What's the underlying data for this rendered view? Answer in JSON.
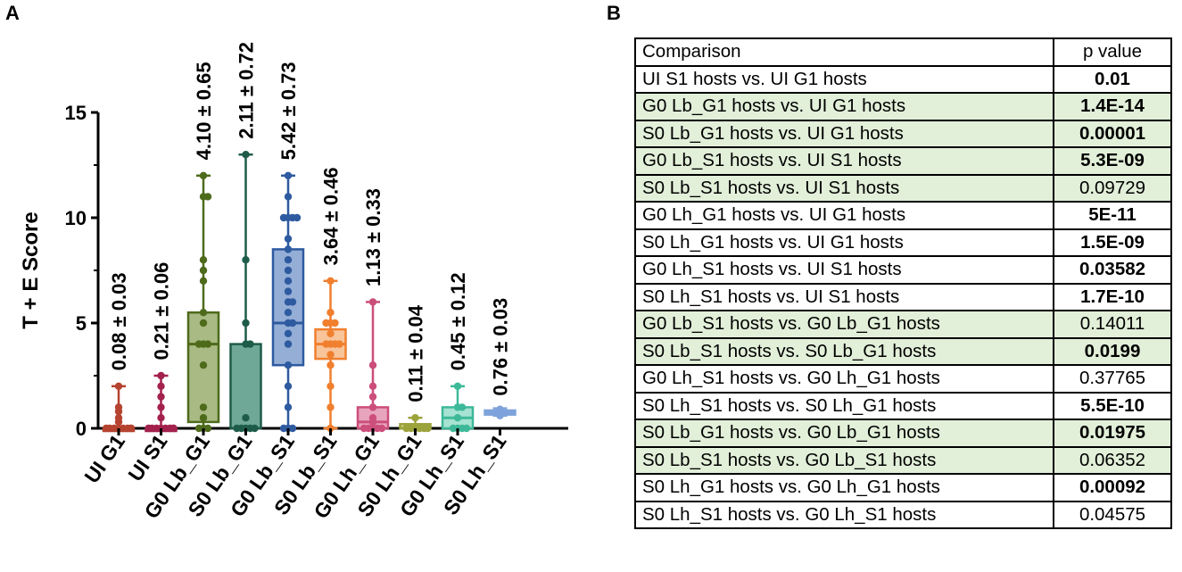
{
  "panelA": {
    "label": "A",
    "chart_data": {
      "type": "box",
      "title": "",
      "ylabel": "T + E Score",
      "xlabel": "",
      "ylim": [
        0,
        15
      ],
      "yticks": [
        0,
        5,
        10,
        15
      ],
      "categories": [
        "UI G1",
        "UI S1",
        "G0 Lb_G1",
        "S0 Lb_G1",
        "G0 Lb_S1",
        "S0 Lb_S1",
        "G0 Lh_G1",
        "S0 Lh_G1",
        "G0 Lh_S1",
        "S0 Lh_S1"
      ],
      "colors": [
        "#b5432f",
        "#a3214d",
        "#4e6b1b",
        "#1e5c4a",
        "#2e5aa0",
        "#f07f2e",
        "#cc4e7a",
        "#9ca33a",
        "#3db999",
        "#7ea3dc"
      ],
      "box_fill": [
        "#b5432f",
        "#a3214d",
        "#a9ba84",
        "#6fa896",
        "#94aed6",
        "#f8c49a",
        "#e9a4bd",
        "#cdd296",
        "#a6e3d2",
        "#bcd0ef"
      ],
      "boxes": [
        {
          "min": 0,
          "q1": 0,
          "median": 0,
          "q3": 0,
          "max": 2
        },
        {
          "min": 0,
          "q1": 0,
          "median": 0,
          "q3": 0,
          "max": 2.5
        },
        {
          "min": 0,
          "q1": 0.3,
          "median": 4,
          "q3": 5.5,
          "max": 12
        },
        {
          "min": 0,
          "q1": 0,
          "median": 0,
          "q3": 4,
          "max": 13
        },
        {
          "min": 0,
          "q1": 3,
          "median": 5,
          "q3": 8.5,
          "max": 12
        },
        {
          "min": 0,
          "q1": 3.3,
          "median": 4,
          "q3": 4.7,
          "max": 7
        },
        {
          "min": 0,
          "q1": 0,
          "median": 0.3,
          "q3": 1,
          "max": 6
        },
        {
          "min": 0,
          "q1": 0,
          "median": 0,
          "q3": 0.2,
          "max": 0.5
        },
        {
          "min": 0,
          "q1": 0,
          "median": 0.5,
          "q3": 1,
          "max": 2
        },
        {
          "min": 0.6,
          "q1": 0.65,
          "median": 0.75,
          "q3": 0.85,
          "max": 0.95
        }
      ],
      "points": [
        [
          0,
          0,
          0,
          0,
          0,
          0,
          0,
          0,
          0.3,
          0.5,
          0.8,
          1,
          2
        ],
        [
          0,
          0,
          0,
          0,
          0,
          0,
          0,
          0,
          0.5,
          1,
          1.5,
          2,
          2.5
        ],
        [
          0,
          0,
          0,
          0.5,
          1,
          3,
          4,
          4,
          4,
          5,
          5.5,
          7,
          7.5,
          8,
          11,
          11,
          12
        ],
        [
          0,
          0,
          0,
          0,
          0,
          0.5,
          4,
          4,
          5,
          8,
          13
        ],
        [
          0,
          0,
          0,
          1,
          2,
          3,
          4,
          4.5,
          5,
          5,
          5.5,
          6,
          6,
          6.5,
          7,
          7.5,
          8,
          8.5,
          9,
          10,
          10,
          10,
          10,
          11,
          12
        ],
        [
          0,
          1,
          2,
          3,
          3.5,
          4,
          4,
          4,
          4,
          4.5,
          5,
          5,
          5,
          5.5,
          7
        ],
        [
          0,
          0,
          0,
          0,
          0,
          0.3,
          0.5,
          1,
          1.5,
          2,
          3,
          6
        ],
        [
          0,
          0,
          0,
          0,
          0,
          0,
          0.5
        ],
        [
          0,
          0,
          0,
          0,
          0.5,
          1,
          1,
          2
        ],
        [
          0.6,
          0.65,
          0.7,
          0.75,
          0.8,
          0.85,
          0.9
        ]
      ],
      "annotations": [
        "0.08 ± 0.03",
        "0.21 ± 0.06",
        "4.10 ± 0.65",
        "2.11 ± 0.72",
        "5.42 ± 0.73",
        "3.64 ± 0.46",
        "1.13 ± 0.33",
        "0.11 ± 0.04",
        "0.45 ± 0.12",
        "0.76 ± 0.03"
      ],
      "annotation_base": [
        2.4,
        2.9,
        12.4,
        13.4,
        12.4,
        7.4,
        6.4,
        0.9,
        2.4,
        1.2
      ]
    }
  },
  "panelB": {
    "label": "B",
    "header": [
      "Comparison",
      "p value"
    ],
    "rows": [
      {
        "comparison": "UI S1 hosts vs. UI G1 hosts",
        "p": "0.01",
        "bold": true,
        "highlight": false
      },
      {
        "comparison": "G0 Lb_G1 hosts vs. UI G1 hosts",
        "p": "1.4E-14",
        "bold": true,
        "highlight": true
      },
      {
        "comparison": "S0 Lb_G1 hosts vs. UI G1 hosts",
        "p": "0.00001",
        "bold": true,
        "highlight": true
      },
      {
        "comparison": "G0 Lb_S1 hosts vs. UI S1 hosts",
        "p": "5.3E-09",
        "bold": true,
        "highlight": true
      },
      {
        "comparison": "S0 Lb_S1 hosts vs. UI S1 hosts",
        "p": "0.09729",
        "bold": false,
        "highlight": true
      },
      {
        "comparison": "G0 Lh_G1 hosts vs. UI G1 hosts",
        "p": "5E-11",
        "bold": true,
        "highlight": false
      },
      {
        "comparison": "S0 Lh_G1 hosts vs. UI G1 hosts",
        "p": "1.5E-09",
        "bold": true,
        "highlight": false
      },
      {
        "comparison": "G0 Lh_S1 hosts vs. UI S1 hosts",
        "p": "0.03582",
        "bold": true,
        "highlight": false
      },
      {
        "comparison": "S0 Lh_S1 hosts vs. UI S1 hosts",
        "p": "1.7E-10",
        "bold": true,
        "highlight": false
      },
      {
        "comparison": "G0 Lb_S1 hosts vs. G0 Lb_G1 hosts",
        "p": "0.14011",
        "bold": false,
        "highlight": true
      },
      {
        "comparison": "S0 Lb_S1 hosts vs. S0 Lb_G1 hosts",
        "p": "0.0199",
        "bold": true,
        "highlight": true
      },
      {
        "comparison": "G0 Lh_S1 hosts vs. G0 Lh_G1 hosts",
        "p": "0.37765",
        "bold": false,
        "highlight": false
      },
      {
        "comparison": "S0 Lh_S1 hosts vs. S0 Lh_G1 hosts",
        "p": "5.5E-10",
        "bold": true,
        "highlight": false
      },
      {
        "comparison": "S0 Lb_G1 hosts vs. G0 Lb_G1 hosts",
        "p": "0.01975",
        "bold": true,
        "highlight": true
      },
      {
        "comparison": "S0 Lb_S1 hosts vs. G0 Lb_S1 hosts",
        "p": "0.06352",
        "bold": false,
        "highlight": true
      },
      {
        "comparison": "S0 Lh_G1 hosts vs. G0 Lh_G1 hosts",
        "p": "0.00092",
        "bold": true,
        "highlight": false
      },
      {
        "comparison": "S0 Lh_S1 hosts vs. G0 Lh_S1 hosts",
        "p": "0.04575",
        "bold": false,
        "highlight": false
      }
    ]
  }
}
